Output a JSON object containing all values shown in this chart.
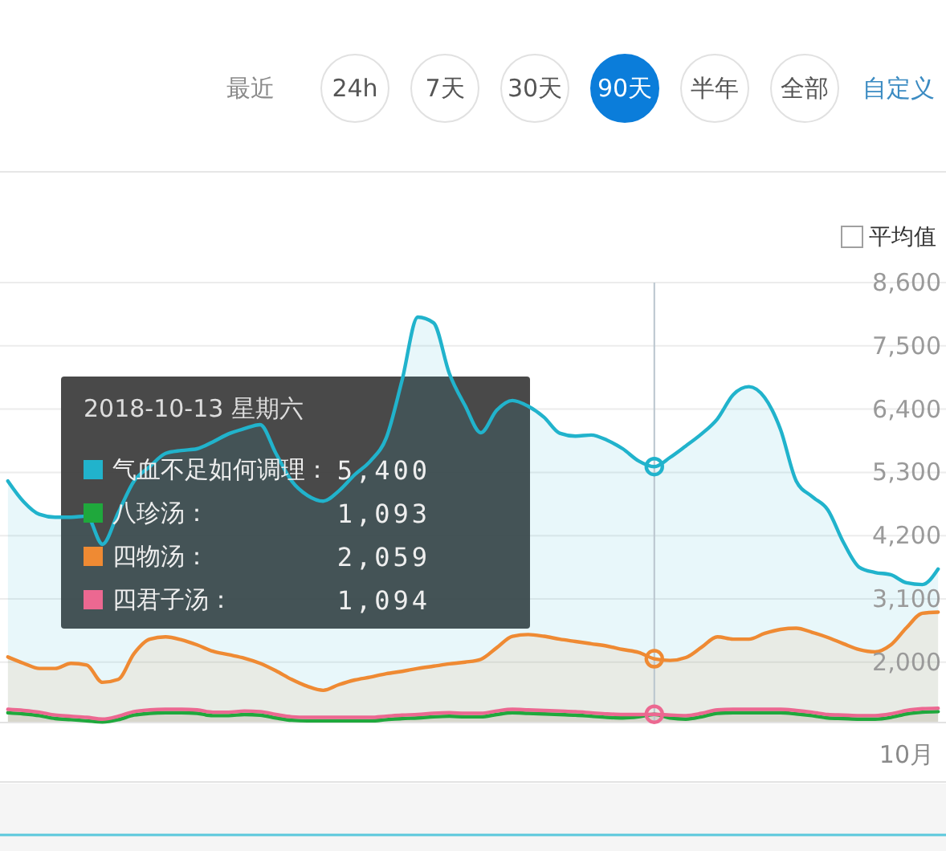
{
  "chart_data": {
    "type": "area",
    "categories": [
      null,
      null,
      null,
      null,
      null,
      null,
      null,
      null,
      null,
      null,
      null,
      null,
      null,
      null,
      null,
      null,
      null,
      null,
      null,
      null,
      null,
      null,
      null,
      null,
      null,
      null,
      null,
      null,
      null,
      null,
      null,
      null,
      null,
      null,
      null,
      null,
      null,
      null,
      null,
      null,
      null,
      null,
      null,
      null,
      null,
      null,
      null,
      null,
      null,
      null,
      null,
      null,
      null,
      null,
      null,
      null,
      null,
      "10月",
      null,
      null
    ],
    "ylim": [
      950,
      8600
    ],
    "yticks": [
      {
        "value": 2000,
        "label": "2,000"
      },
      {
        "value": 3100,
        "label": "3,100"
      },
      {
        "value": 4200,
        "label": "4,200"
      },
      {
        "value": 5300,
        "label": "5,300"
      },
      {
        "value": 6400,
        "label": "6,400"
      },
      {
        "value": 7500,
        "label": "7,500"
      },
      {
        "value": 8600,
        "label": "8,600"
      }
    ],
    "grid": "y",
    "legend": "left",
    "series": [
      {
        "name": "气血不足如何调理：",
        "color": "#21b3cc",
        "values": [
          5150,
          4790,
          4570,
          4520,
          4520,
          4540,
          4050,
          4600,
          5150,
          5400,
          5630,
          5680,
          5710,
          5830,
          5970,
          6060,
          6130,
          5630,
          5150,
          4900,
          4800,
          4980,
          5260,
          5500,
          5900,
          6900,
          8000,
          7900,
          7020,
          6460,
          5990,
          6380,
          6550,
          6450,
          6260,
          5980,
          5930,
          5950,
          5860,
          5710,
          5500,
          5400,
          5560,
          5760,
          5970,
          6230,
          6650,
          6790,
          6600,
          6050,
          5150,
          4880,
          4650,
          4080,
          3650,
          3560,
          3520,
          3380,
          3350,
          3620
        ]
      },
      {
        "name": "八珍汤：",
        "color": "#1fa83c",
        "values": [
          1120,
          1100,
          1070,
          1020,
          1000,
          980,
          960,
          1000,
          1080,
          1110,
          1120,
          1120,
          1110,
          1070,
          1070,
          1090,
          1080,
          1030,
          990,
          980,
          980,
          980,
          980,
          980,
          1000,
          1020,
          1030,
          1050,
          1060,
          1050,
          1050,
          1090,
          1120,
          1110,
          1100,
          1090,
          1080,
          1060,
          1040,
          1030,
          1050,
          1093,
          1030,
          1010,
          1050,
          1110,
          1120,
          1120,
          1120,
          1120,
          1100,
          1070,
          1030,
          1020,
          1010,
          1010,
          1040,
          1100,
          1130,
          1140
        ]
      },
      {
        "name": "四物汤：",
        "color": "#ef8a33",
        "values": [
          2090,
          1980,
          1890,
          1890,
          1980,
          1950,
          1650,
          1700,
          2150,
          2400,
          2440,
          2390,
          2300,
          2190,
          2130,
          2070,
          1980,
          1850,
          1700,
          1580,
          1510,
          1610,
          1690,
          1740,
          1800,
          1840,
          1890,
          1930,
          1970,
          2000,
          2050,
          2250,
          2450,
          2480,
          2450,
          2400,
          2360,
          2320,
          2280,
          2220,
          2170,
          2059,
          2030,
          2080,
          2260,
          2440,
          2400,
          2400,
          2500,
          2570,
          2590,
          2520,
          2430,
          2320,
          2220,
          2180,
          2300,
          2600,
          2850,
          2870
        ]
      },
      {
        "name": "四君子汤：",
        "color": "#ec6891",
        "values": [
          1180,
          1160,
          1130,
          1080,
          1060,
          1040,
          1010,
          1060,
          1140,
          1170,
          1180,
          1180,
          1170,
          1130,
          1130,
          1150,
          1140,
          1090,
          1050,
          1040,
          1040,
          1040,
          1040,
          1040,
          1060,
          1080,
          1090,
          1110,
          1120,
          1110,
          1110,
          1150,
          1180,
          1170,
          1160,
          1150,
          1140,
          1120,
          1100,
          1090,
          1090,
          1094,
          1080,
          1070,
          1110,
          1170,
          1180,
          1180,
          1180,
          1180,
          1160,
          1130,
          1090,
          1080,
          1070,
          1070,
          1100,
          1160,
          1190,
          1200
        ]
      },
      {
        "type": "scatter",
        "color": "#21b3cc",
        "marker": "circle",
        "values": [
          null,
          null,
          null,
          null,
          null,
          null,
          null,
          null,
          null,
          null,
          null,
          null,
          null,
          null,
          null,
          null,
          null,
          null,
          null,
          null,
          null,
          null,
          null,
          null,
          null,
          null,
          null,
          null,
          null,
          null,
          null,
          null,
          null,
          null,
          null,
          null,
          null,
          null,
          null,
          null,
          null,
          5400,
          null,
          null,
          null,
          null,
          null,
          null,
          null,
          null,
          null,
          null,
          null,
          null,
          null,
          null,
          null,
          null,
          null,
          null
        ]
      },
      {
        "type": "scatter",
        "color": "#ef8a33",
        "marker": "circle",
        "values": [
          null,
          null,
          null,
          null,
          null,
          null,
          null,
          null,
          null,
          null,
          null,
          null,
          null,
          null,
          null,
          null,
          null,
          null,
          null,
          null,
          null,
          null,
          null,
          null,
          null,
          null,
          null,
          null,
          null,
          null,
          null,
          null,
          null,
          null,
          null,
          null,
          null,
          null,
          null,
          null,
          null,
          2059,
          null,
          null,
          null,
          null,
          null,
          null,
          null,
          null,
          null,
          null,
          null,
          null,
          null,
          null,
          null,
          null,
          null,
          null
        ]
      },
      {
        "type": "scatter",
        "color": "#ec6891",
        "marker": "circle",
        "values": [
          null,
          null,
          null,
          null,
          null,
          null,
          null,
          null,
          null,
          null,
          null,
          null,
          null,
          null,
          null,
          null,
          null,
          null,
          null,
          null,
          null,
          null,
          null,
          null,
          null,
          null,
          null,
          null,
          null,
          null,
          null,
          null,
          null,
          null,
          null,
          null,
          null,
          null,
          null,
          null,
          null,
          1094,
          null,
          null,
          null,
          null,
          null,
          null,
          null,
          null,
          null,
          null,
          null,
          null,
          null,
          null,
          null,
          null,
          null,
          null
        ]
      }
    ],
    "annotations": [
      "最近",
      "24h",
      "7天",
      "30天",
      "90天",
      "半年",
      "全部",
      "自定义",
      "平均值",
      "2018-10-13 星期六",
      "5,400",
      "1,093",
      "2,059",
      "1,094"
    ]
  }
}
